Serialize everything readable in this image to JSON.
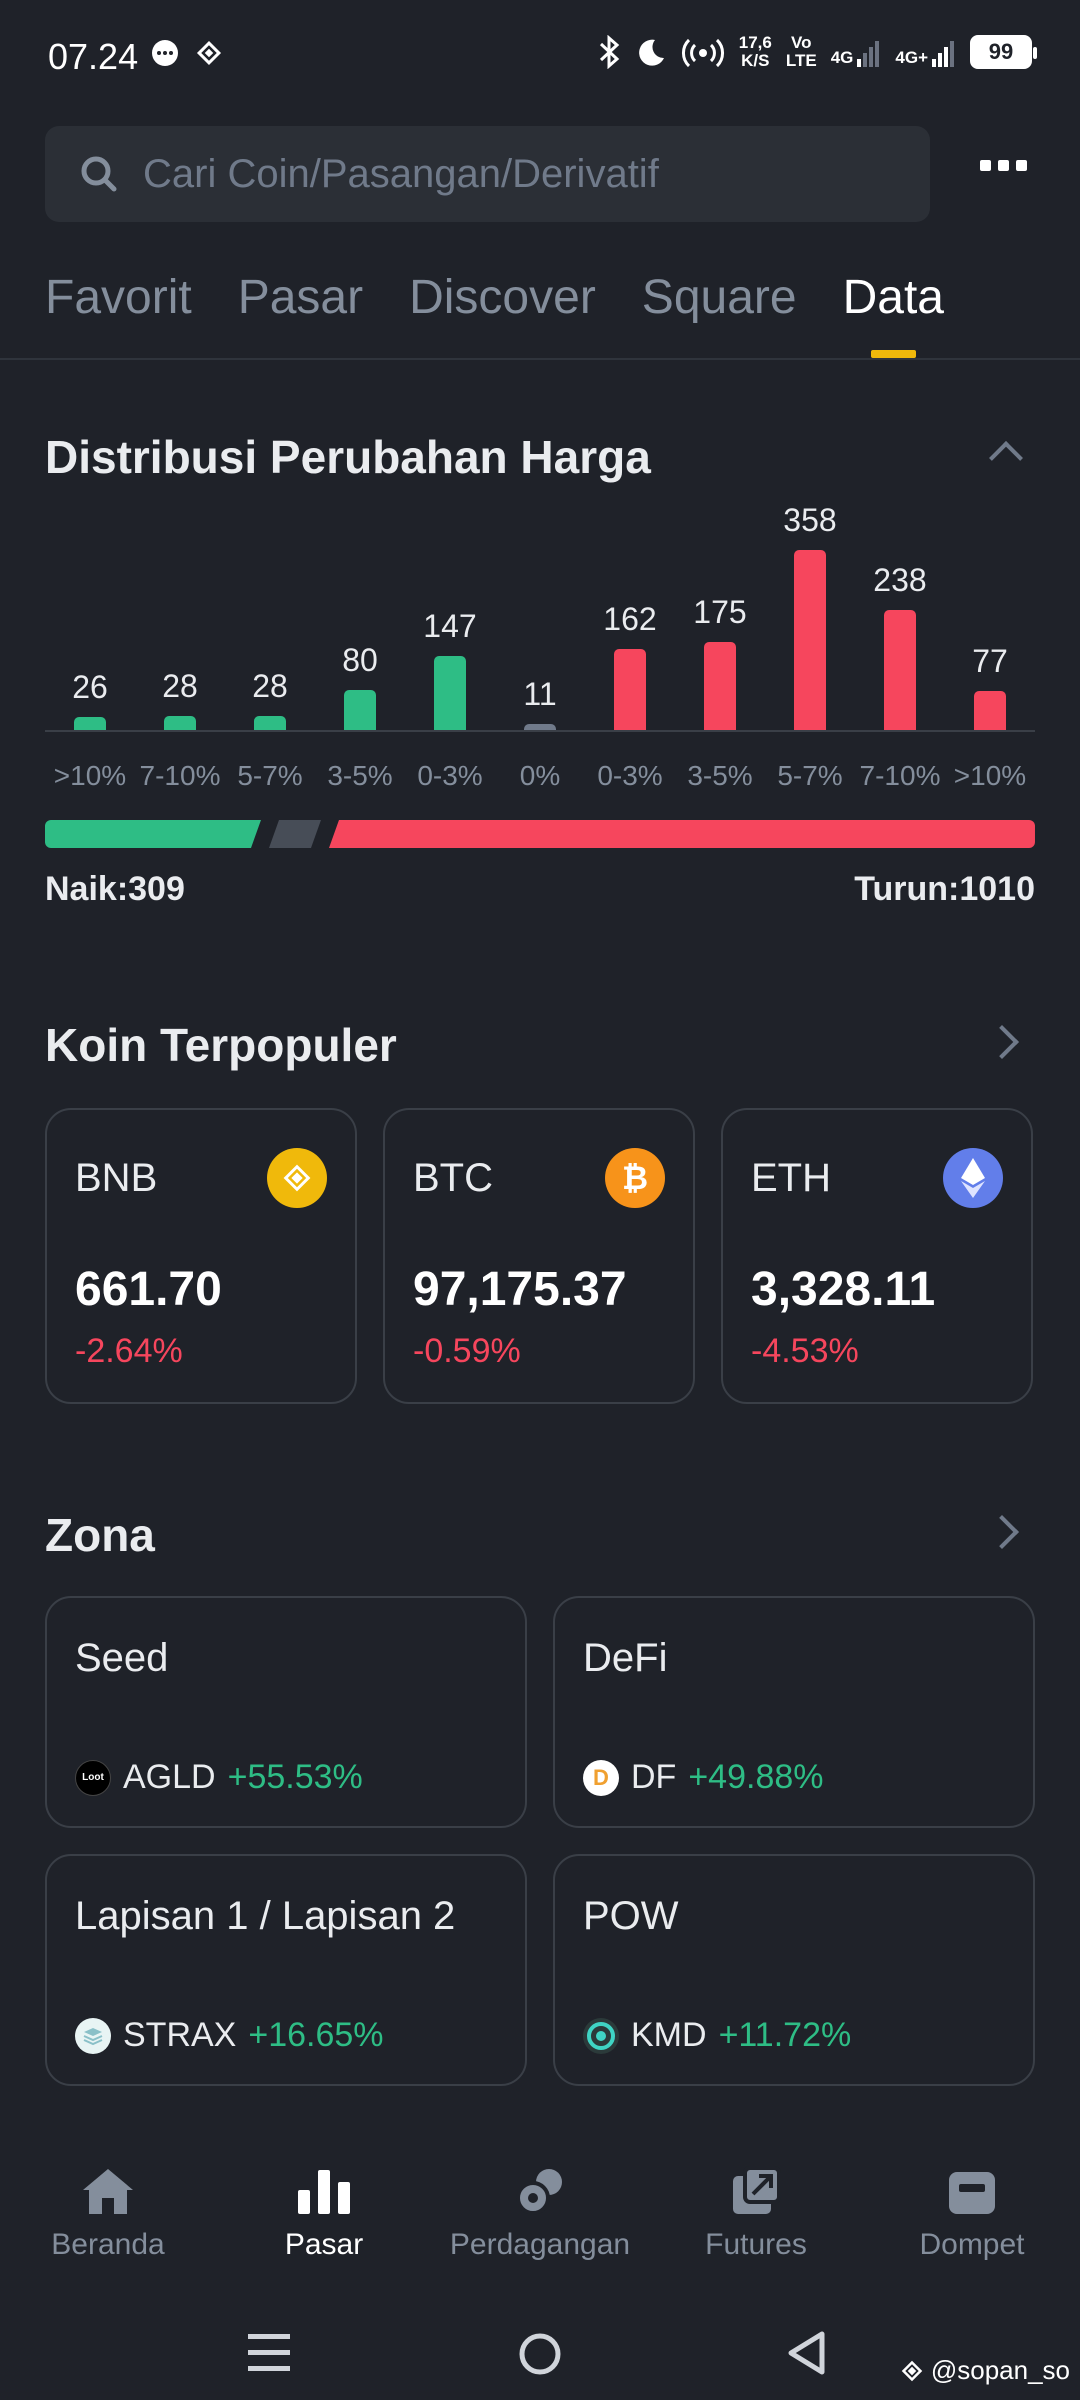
{
  "status_bar": {
    "time": "07.24",
    "net_speed": "17,6",
    "net_unit": "K/S",
    "volte_top": "Vo",
    "volte_bottom": "LTE",
    "sig1": "4G",
    "sig2": "4G+",
    "battery": "99"
  },
  "search": {
    "placeholder": "Cari Coin/Pasangan/Derivatif"
  },
  "tabs": [
    {
      "label": "Favorit"
    },
    {
      "label": "Pasar"
    },
    {
      "label": "Discover"
    },
    {
      "label": "Square"
    },
    {
      "label": "Data",
      "active": true
    }
  ],
  "distribution": {
    "title": "Distribusi Perubahan Harga",
    "naik_label": "Naik:309",
    "turun_label": "Turun:1010",
    "up_count": 309,
    "flat_count": 11,
    "down_count": 1010
  },
  "chart_data": {
    "type": "bar",
    "categories": [
      ">10%",
      "7-10%",
      "5-7%",
      "3-5%",
      "0-3%",
      "0%",
      "0-3%",
      "3-5%",
      "5-7%",
      "7-10%",
      ">10%"
    ],
    "values": [
      26,
      28,
      28,
      80,
      147,
      11,
      162,
      175,
      358,
      238,
      77
    ],
    "colors": [
      "#2ebd85",
      "#2ebd85",
      "#2ebd85",
      "#2ebd85",
      "#2ebd85",
      "#707a8a",
      "#f6465d",
      "#f6465d",
      "#f6465d",
      "#f6465d",
      "#f6465d"
    ],
    "ylim": [
      0,
      358
    ],
    "grid": false
  },
  "popular": {
    "title": "Koin Terpopuler",
    "coins": [
      {
        "symbol": "BNB",
        "price": "661.70",
        "change": "-2.64%",
        "icon": "bnb-icon",
        "color": "#f0b90b"
      },
      {
        "symbol": "BTC",
        "price": "97,175.37",
        "change": "-0.59%",
        "icon": "btc-icon",
        "color": "#f7931a"
      },
      {
        "symbol": "ETH",
        "price": "3,328.11",
        "change": "-4.53%",
        "icon": "eth-icon",
        "color": "#627eea"
      }
    ]
  },
  "zones": {
    "title": "Zona",
    "items": [
      {
        "name": "Seed",
        "symbol": "AGLD",
        "change": "+55.53%",
        "icon_text": "Loot"
      },
      {
        "name": "DeFi",
        "symbol": "DF",
        "change": "+49.88%",
        "icon_text": "D"
      },
      {
        "name": "Lapisan 1 / Lapisan 2",
        "symbol": "STRAX",
        "change": "+16.65%",
        "icon_text": ""
      },
      {
        "name": "POW",
        "symbol": "KMD",
        "change": "+11.72%",
        "icon_text": ""
      }
    ]
  },
  "bottom_nav": [
    {
      "label": "Beranda",
      "icon": "home-icon"
    },
    {
      "label": "Pasar",
      "icon": "market-icon",
      "active": true
    },
    {
      "label": "Perdagangan",
      "icon": "trade-icon"
    },
    {
      "label": "Futures",
      "icon": "futures-icon"
    },
    {
      "label": "Dompet",
      "icon": "wallet-icon"
    }
  ],
  "watermark": "@sopan_so",
  "colors": {
    "up": "#2ebd85",
    "down": "#f6465d",
    "accent": "#f0b90b",
    "bg": "#1f2229"
  }
}
